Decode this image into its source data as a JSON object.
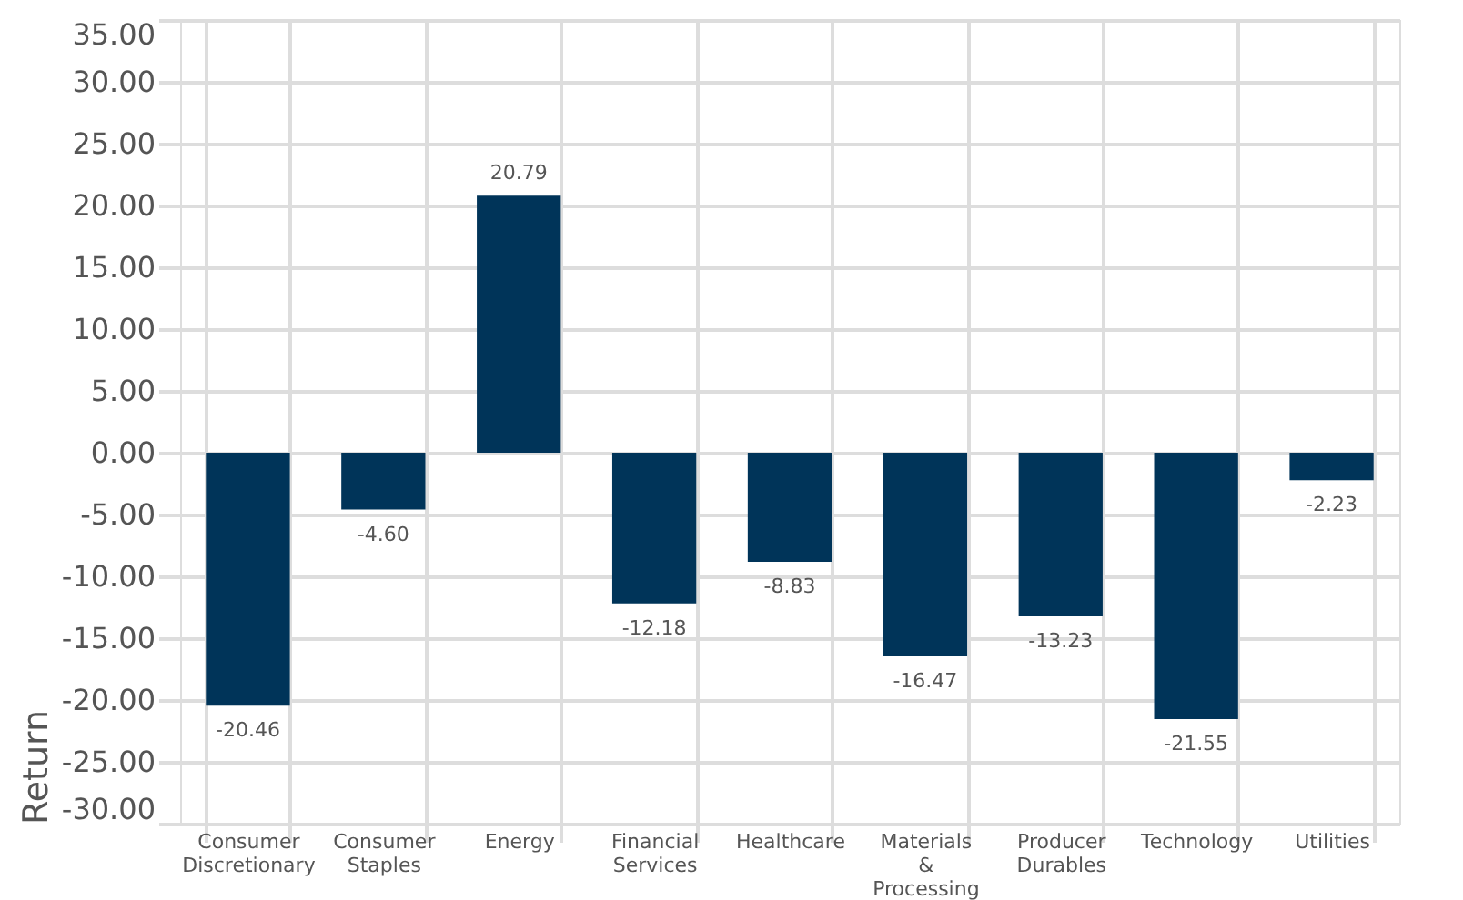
{
  "chart_data": {
    "type": "bar",
    "ylabel": "Return",
    "categories": [
      "Consumer Discretionary",
      "Consumer Staples",
      "Energy",
      "Financial Services",
      "Healthcare",
      "Materials & Processing",
      "Producer Durables",
      "Technology",
      "Utilities"
    ],
    "values": [
      -20.46,
      -4.6,
      20.79,
      -12.18,
      -8.83,
      -16.47,
      -13.23,
      -21.55,
      -2.23
    ],
    "value_labels": [
      "-20.46",
      "-4.60",
      "20.79",
      "-12.18",
      "-8.83",
      "-16.47",
      "-13.23",
      "-21.55",
      "-2.23"
    ],
    "color": "#003459",
    "ylim": [
      -30,
      35
    ],
    "yticks": [
      {
        "value": -30,
        "label": "-30.00"
      },
      {
        "value": -25,
        "label": "-25.00"
      },
      {
        "value": -20,
        "label": "-20.00"
      },
      {
        "value": -15,
        "label": "-15.00"
      },
      {
        "value": -10,
        "label": "-10.00"
      },
      {
        "value": -5,
        "label": "-5.00"
      },
      {
        "value": 0,
        "label": "0.00"
      },
      {
        "value": 5,
        "label": "5.00"
      },
      {
        "value": 10,
        "label": "10.00"
      },
      {
        "value": 15,
        "label": "15.00"
      },
      {
        "value": 20,
        "label": "20.00"
      },
      {
        "value": 25,
        "label": "25.00"
      },
      {
        "value": 30,
        "label": "30.00"
      },
      {
        "value": 35,
        "label": "35.00"
      }
    ],
    "grid": true
  }
}
